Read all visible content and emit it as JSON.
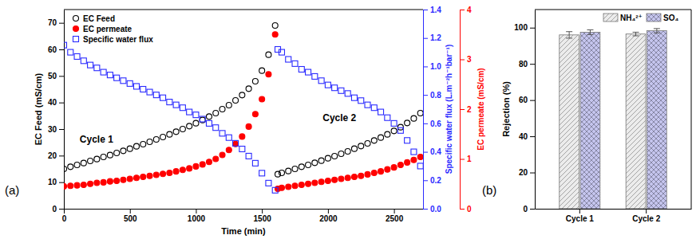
{
  "chart_data": [
    {
      "type": "scatter",
      "panel_label": "(a)",
      "xlabel": "Time (min)",
      "ylabel": "EC Feed (mS/cm)",
      "y2label": "Specific water flux (L.m⁻²h⁻¹bar⁻¹)",
      "y3label": "EC permeate (mS/cm)",
      "xlim": [
        0,
        2720
      ],
      "xticks": [
        0,
        500,
        1000,
        1500,
        2000,
        2500
      ],
      "ylim": [
        0,
        75
      ],
      "yticks": [
        0,
        10,
        20,
        30,
        40,
        50,
        60,
        70
      ],
      "y2lim": [
        0,
        1.4
      ],
      "y2ticks": [
        {
          "value": 0,
          "label": "0.0"
        },
        {
          "value": 0.2,
          "label": "0.2"
        },
        {
          "value": 0.4,
          "label": "0.4"
        },
        {
          "value": 0.6,
          "label": "0.6"
        },
        {
          "value": 0.8,
          "label": "0.8"
        },
        {
          "value": 1,
          "label": "1.0"
        },
        {
          "value": 1.2,
          "label": "1.2"
        },
        {
          "value": 1.4,
          "label": "1.4"
        }
      ],
      "y3lim": [
        0,
        4
      ],
      "y3ticks": [
        0,
        1,
        2,
        3,
        4
      ],
      "legend": "upper left",
      "annotations": [
        {
          "text": "Cycle 1",
          "x": 120,
          "y": 25
        },
        {
          "text": "Cycle 2",
          "x": 1960,
          "y": 33
        }
      ],
      "x": [
        0,
        50,
        100,
        150,
        200,
        250,
        300,
        350,
        400,
        450,
        500,
        550,
        600,
        650,
        700,
        750,
        800,
        850,
        900,
        950,
        1000,
        1050,
        1100,
        1150,
        1200,
        1250,
        1300,
        1350,
        1400,
        1450,
        1500,
        1550,
        1600,
        1620,
        1650,
        1700,
        1750,
        1800,
        1850,
        1900,
        1950,
        2000,
        2050,
        2100,
        2150,
        2200,
        2250,
        2300,
        2350,
        2400,
        2450,
        2500,
        2550,
        2600,
        2650,
        2700
      ],
      "series": [
        {
          "name": "EC Feed",
          "color": "#000000",
          "marker": "open_circle",
          "axis": "y",
          "values": [
            15,
            15.8,
            16.5,
            17.2,
            18,
            18.7,
            19.5,
            20.2,
            21,
            21.8,
            22.6,
            23.5,
            24.3,
            25.2,
            26.1,
            27,
            28,
            29,
            30,
            31.1,
            32.2,
            33.4,
            34.7,
            36,
            37.5,
            39,
            40.8,
            42.8,
            45.2,
            48,
            52,
            58,
            69,
            13,
            13.5,
            14.2,
            15,
            15.8,
            16.5,
            17.3,
            18.1,
            19,
            19.8,
            20.7,
            21.6,
            22.6,
            23.6,
            24.6,
            25.7,
            26.8,
            28,
            29.3,
            30.7,
            32.3,
            34,
            36
          ]
        },
        {
          "name": "EC permeate",
          "color": "#ff0000",
          "marker": "circle",
          "axis": "y3",
          "values": [
            0.45,
            0.46,
            0.47,
            0.48,
            0.5,
            0.52,
            0.53,
            0.55,
            0.56,
            0.58,
            0.6,
            0.62,
            0.64,
            0.66,
            0.68,
            0.7,
            0.72,
            0.75,
            0.78,
            0.81,
            0.85,
            0.89,
            0.94,
            1.0,
            1.08,
            1.18,
            1.3,
            1.45,
            1.65,
            1.9,
            2.2,
            2.7,
            3.5,
            0.4,
            0.42,
            0.44,
            0.46,
            0.48,
            0.5,
            0.52,
            0.54,
            0.56,
            0.58,
            0.6,
            0.62,
            0.64,
            0.66,
            0.69,
            0.72,
            0.75,
            0.79,
            0.83,
            0.88,
            0.93,
            0.98,
            1.04
          ]
        },
        {
          "name": "Specific water flux",
          "color": "#2a2aff",
          "marker": "open_square",
          "axis": "y2",
          "values": [
            1.15,
            1.1,
            1.07,
            1.04,
            1.01,
            0.99,
            0.96,
            0.94,
            0.92,
            0.9,
            0.88,
            0.86,
            0.84,
            0.82,
            0.8,
            0.78,
            0.75,
            0.73,
            0.71,
            0.68,
            0.66,
            0.63,
            0.6,
            0.57,
            0.53,
            0.5,
            0.46,
            0.42,
            0.37,
            0.32,
            0.25,
            0.18,
            0.13,
            1.12,
            1.1,
            1.05,
            1.02,
            0.98,
            0.96,
            0.93,
            0.9,
            0.87,
            0.85,
            0.83,
            0.81,
            0.78,
            0.76,
            0.73,
            0.71,
            0.68,
            0.64,
            0.6,
            0.55,
            0.48,
            0.4,
            0.3
          ]
        }
      ]
    },
    {
      "type": "bar",
      "panel_label": "(b)",
      "ylabel": "Rejection (%)",
      "categories": [
        "Cycle 1",
        "Cycle 2"
      ],
      "ylim": [
        0,
        110
      ],
      "yticks": [
        0,
        20,
        40,
        60,
        80,
        100
      ],
      "legend": "upper right",
      "series": [
        {
          "name": "NH₄²⁺",
          "color": "#ececec",
          "values": [
            96,
            96.5
          ],
          "errors": [
            1.8,
            1.0
          ]
        },
        {
          "name": "SO₄",
          "color": "#c5c5ee",
          "values": [
            97.5,
            98.3
          ],
          "errors": [
            1.3,
            1.2
          ]
        }
      ]
    }
  ]
}
